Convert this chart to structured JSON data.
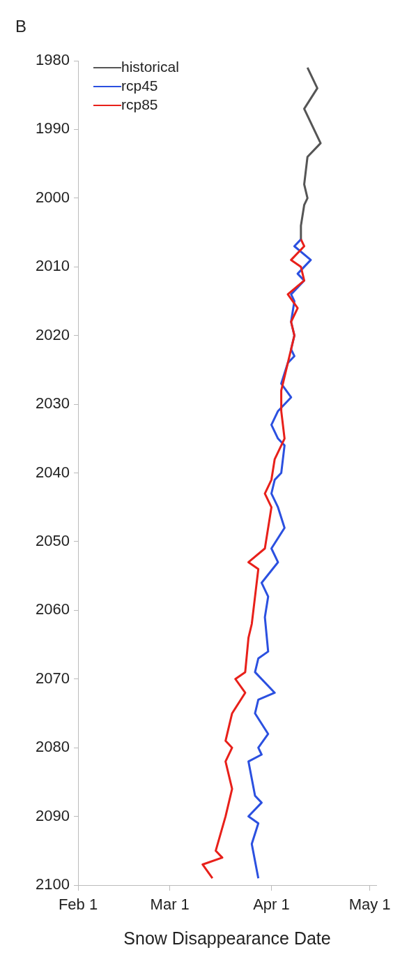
{
  "chart_data": {
    "type": "line",
    "xlabel": "Snow Disappearance Date",
    "annotations": [
      "B"
    ],
    "xlim": [
      "--02-01",
      "--05-03"
    ],
    "xticks": [
      {
        "value": "--02-01",
        "label": "Feb 1"
      },
      {
        "value": "--03-01",
        "label": "Mar 1"
      },
      {
        "value": "--04-01",
        "label": "Apr 1"
      },
      {
        "value": "--05-01",
        "label": "May 1"
      }
    ],
    "ylim": [
      2100,
      1980
    ],
    "yticks": [
      1980,
      1990,
      2000,
      2010,
      2020,
      2030,
      2040,
      2050,
      2060,
      2070,
      2080,
      2090,
      2100
    ],
    "legend": "top left",
    "grid": false,
    "marker": "none",
    "line_style": "solid",
    "series": [
      {
        "name": "historical",
        "color": "#555555",
        "values": [
          1981,
          1984,
          1987,
          1992,
          1994,
          1998,
          2000,
          2001,
          2004,
          2006
        ],
        "x": [
          "--04-12",
          "--04-15",
          "--04-11",
          "--04-16",
          "--04-12",
          "--04-11",
          "--04-12",
          "--04-11",
          "--04-10",
          "--04-10"
        ]
      },
      {
        "name": "rcp45",
        "color": "#2b50e0",
        "values": [
          2006,
          2007,
          2009,
          2011,
          2012,
          2014,
          2015,
          2018,
          2020,
          2022,
          2023,
          2024,
          2027,
          2029,
          2031,
          2033,
          2035,
          2036,
          2040,
          2041,
          2043,
          2045,
          2048,
          2051,
          2053,
          2056,
          2058,
          2061,
          2066,
          2067,
          2069,
          2072,
          2073,
          2075,
          2078,
          2080,
          2081,
          2082,
          2087,
          2088,
          2090,
          2091,
          2094,
          2099
        ],
        "x": [
          "--04-10",
          "--04-08",
          "--04-13",
          "--04-09",
          "--04-11",
          "--04-07",
          "--04-08",
          "--04-07",
          "--04-08",
          "--04-07",
          "--04-08",
          "--04-06",
          "--04-04",
          "--04-07",
          "--04-03",
          "--04-01",
          "--04-03",
          "--04-05",
          "--04-04",
          "--04-02",
          "--04-01",
          "--04-03",
          "--04-05",
          "--04-01",
          "--04-03",
          "--03-29",
          "--03-31",
          "--03-30",
          "--03-31",
          "--03-28",
          "--03-27",
          "--04-02",
          "--03-28",
          "--03-27",
          "--03-31",
          "--03-28",
          "--03-29",
          "--03-25",
          "--03-27",
          "--03-29",
          "--03-25",
          "--03-28",
          "--03-26",
          "--03-28"
        ]
      },
      {
        "name": "rcp85",
        "color": "#e8201a",
        "values": [
          2006,
          2007,
          2009,
          2010,
          2012,
          2014,
          2016,
          2018,
          2020,
          2022,
          2024,
          2028,
          2031,
          2035,
          2038,
          2041,
          2043,
          2045,
          2048,
          2051,
          2053,
          2054,
          2058,
          2062,
          2064,
          2069,
          2070,
          2072,
          2075,
          2079,
          2080,
          2082,
          2086,
          2090,
          2095,
          2096,
          2097,
          2099
        ],
        "x": [
          "--04-10",
          "--04-11",
          "--04-07",
          "--04-10",
          "--04-11",
          "--04-06",
          "--04-09",
          "--04-07",
          "--04-08",
          "--04-07",
          "--04-06",
          "--04-04",
          "--04-04",
          "--04-05",
          "--04-02",
          "--04-01",
          "--03-30",
          "--04-01",
          "--03-31",
          "--03-30",
          "--03-25",
          "--03-28",
          "--03-27",
          "--03-26",
          "--03-25",
          "--03-24",
          "--03-21",
          "--03-24",
          "--03-20",
          "--03-18",
          "--03-20",
          "--03-18",
          "--03-20",
          "--03-18",
          "--03-15",
          "--03-17",
          "--03-11",
          "--03-14"
        ]
      }
    ]
  }
}
